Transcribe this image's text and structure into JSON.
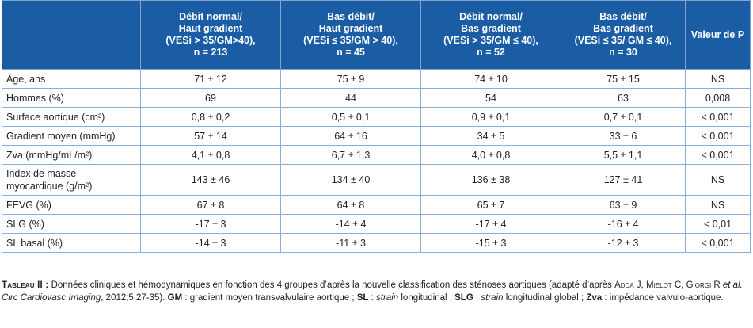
{
  "table": {
    "headers": [
      [],
      [
        "Débit normal/",
        "Haut gradient",
        "(VESi > 35/GM>40),",
        "n = 213"
      ],
      [
        "Bas débit/",
        "Haut gradient",
        "(VESi ≤ 35/GM > 40),",
        "n = 45"
      ],
      [
        "Débit normal/",
        "Bas gradient",
        "(VESi > 35/GM ≤ 40),",
        "n = 52"
      ],
      [
        "Bas débit/",
        "Bas gradient",
        "(VESi ≤ 35/ GM ≤ 40),",
        "n = 30"
      ],
      [
        "Valeur de P"
      ]
    ],
    "rows": [
      {
        "label": "Âge, ans",
        "values": [
          "71 ± 12",
          "75 ± 9",
          "74 ± 10",
          "75 ± 15",
          "NS"
        ]
      },
      {
        "label": "Hommes (%)",
        "values": [
          "69",
          "44",
          "54",
          "63",
          "0,008"
        ]
      },
      {
        "label": "Surface aortique (cm²)",
        "values": [
          "0,8 ± 0,2",
          "0,5 ± 0,1",
          "0,9 ± 0,1",
          "0,7 ± 0,1",
          "< 0,001"
        ]
      },
      {
        "label": "Gradient moyen (mmHg)",
        "values": [
          "57 ± 14",
          "64 ± 16",
          "34 ± 5",
          "33 ± 6",
          "< 0,001"
        ]
      },
      {
        "label": "Zva (mmHg/mL/m²)",
        "values": [
          "4,1 ± 0,8",
          "6,7 ± 1,3",
          "4,0 ± 0,8",
          "5,5 ± 1,1",
          "< 0,001"
        ]
      },
      {
        "label": "Index de masse myocardique (g/m²)",
        "values": [
          "143 ± 46",
          "134 ± 40",
          "136 ± 38",
          "127 ± 41",
          "NS"
        ],
        "tall": true
      },
      {
        "label": "FEVG (%)",
        "values": [
          "67 ± 8",
          "64 ± 8",
          "65 ± 7",
          "63 ± 9",
          "NS"
        ]
      },
      {
        "label": "SLG (%)",
        "values": [
          "-17 ± 3",
          "-14 ± 4",
          "-17 ± 4",
          "-16 ± 4",
          "< 0,01"
        ]
      },
      {
        "label": "SL basal (%)",
        "values": [
          "-14 ± 3",
          "-11 ± 3",
          "-15 ± 3",
          "-12 ± 3",
          "< 0,001"
        ]
      }
    ]
  },
  "caption": {
    "lead": "Tableau II :",
    "t1": " Données cliniques et hémodynamiques en fonction des 4 groupes d’après la nouvelle classification des sténoses aortiques (adapté d’après ",
    "authors": "Adda J, Mielot C, Giorgi R",
    "etal": " et al. Circ Cardiovasc Imaging",
    "ref": ", 2012;5:27-35). ",
    "gm": "GM",
    "gm_def": " : gradient moyen transvalvulaire aortique ; ",
    "sl": "SL",
    "sl_def_pre": " : ",
    "strain1": "strain",
    "sl_def_post": " longitudinal ; ",
    "slg": "SLG",
    "slg_def_pre": " : ",
    "strain2": "strain",
    "slg_def_post": " longitudinal global ; ",
    "zva": "Zva",
    "zva_def": " : impédance valvulo-aortique."
  }
}
